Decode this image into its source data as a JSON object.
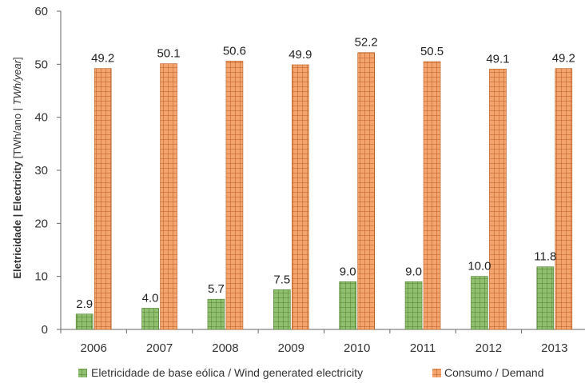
{
  "chart_data": {
    "type": "bar",
    "categories": [
      "2006",
      "2007",
      "2008",
      "2009",
      "2010",
      "2011",
      "2012",
      "2013"
    ],
    "series": [
      {
        "name": "Eletricidade de base eólica / Wind generated electricity",
        "values": [
          2.9,
          4.0,
          5.7,
          7.5,
          9.0,
          9.0,
          10.0,
          11.8
        ],
        "labels": [
          "2.9",
          "4.0",
          "5.7",
          "7.5",
          "9.0",
          "9.0",
          "10.0",
          "11.8"
        ],
        "color": "#8fbf6f",
        "grid_color": "#4f7f2f"
      },
      {
        "name": "Consumo / Demand",
        "values": [
          49.2,
          50.1,
          50.6,
          49.9,
          52.2,
          50.5,
          49.1,
          49.2
        ],
        "labels": [
          "49.2",
          "50.1",
          "50.6",
          "49.9",
          "52.2",
          "50.5",
          "49.1",
          "49.2"
        ],
        "color": "#f4a56f",
        "grid_color": "#b85c1f"
      }
    ],
    "title": "",
    "xlabel": "",
    "ylabel_parts": {
      "bold": "Eletricidade | Electricity",
      "normal1": " [TWh/",
      "normal2": "ano | ",
      "italic": "TWh/year",
      "normal3": "]"
    },
    "ylim": [
      0,
      60
    ],
    "yticks": [
      "0",
      "10",
      "20",
      "30",
      "40",
      "50",
      "60"
    ],
    "grid": false,
    "legend_position": "bottom"
  }
}
